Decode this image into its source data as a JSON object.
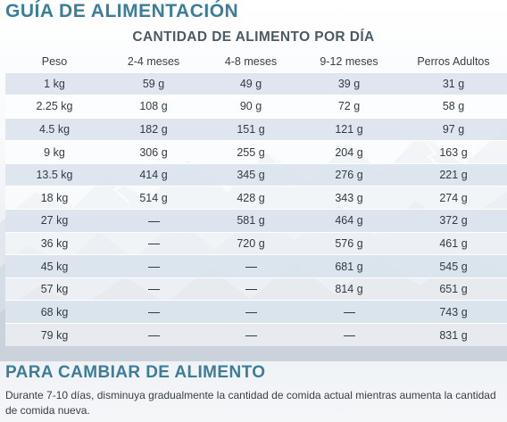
{
  "header": {
    "title": "GUÍA DE ALIMENTACIÓN",
    "subtitle": "CANTIDAD DE ALIMENTO POR DÍA"
  },
  "colors": {
    "accent": "#3c7d99",
    "row_shade": "#dce4ee",
    "text": "#333b42"
  },
  "table": {
    "columns": [
      "Peso",
      "2-4 meses",
      "4-8 meses",
      "9-12 meses",
      "Perros Adultos"
    ],
    "rows": [
      [
        "1 kg",
        "59 g",
        "49 g",
        "39 g",
        "31 g"
      ],
      [
        "2.25 kg",
        "108 g",
        "90 g",
        "72 g",
        "58 g"
      ],
      [
        "4.5 kg",
        "182 g",
        "151 g",
        "121 g",
        "97 g"
      ],
      [
        "9 kg",
        "306 g",
        "255 g",
        "204 g",
        "163 g"
      ],
      [
        "13.5 kg",
        "414 g",
        "345 g",
        "276 g",
        "221 g"
      ],
      [
        "18 kg",
        "514 g",
        "428 g",
        "343 g",
        "274 g"
      ],
      [
        "27 kg",
        "—",
        "581 g",
        "464 g",
        "372 g"
      ],
      [
        "36 kg",
        "—",
        "720 g",
        "576 g",
        "461 g"
      ],
      [
        "45 kg",
        "—",
        "—",
        "681 g",
        "545 g"
      ],
      [
        "57 kg",
        "—",
        "—",
        "814 g",
        "651 g"
      ],
      [
        "68 kg",
        "—",
        "—",
        "—",
        "743 g"
      ],
      [
        "79 kg",
        "—",
        "—",
        "—",
        "831 g"
      ]
    ]
  },
  "transition": {
    "title": "PARA CAMBIAR DE ALIMENTO",
    "text": "Durante 7-10 días, disminuya gradualmente la cantidad de comida actual mientras aumenta la cantidad de comida nueva."
  }
}
